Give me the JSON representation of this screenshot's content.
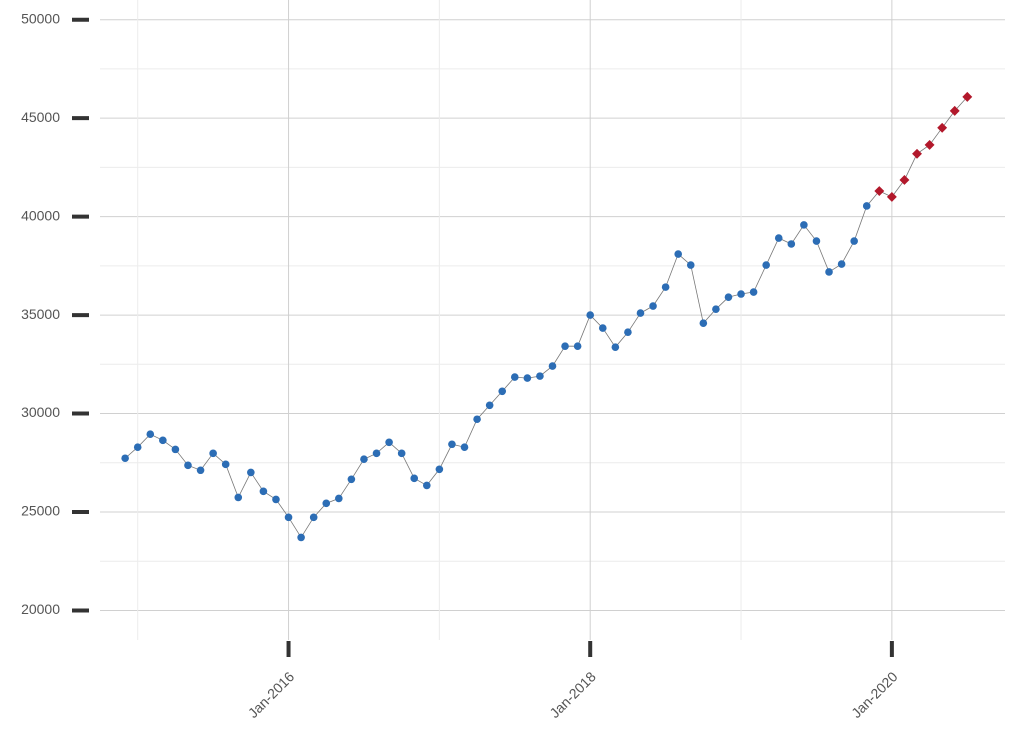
{
  "chart_data": {
    "type": "line",
    "x": [
      "Dec-2014",
      "Jan-2015",
      "Feb-2015",
      "Mar-2015",
      "Apr-2015",
      "May-2015",
      "Jun-2015",
      "Jul-2015",
      "Aug-2015",
      "Sep-2015",
      "Oct-2015",
      "Nov-2015",
      "Dec-2015",
      "Jan-2016",
      "Feb-2016",
      "Mar-2016",
      "Apr-2016",
      "May-2016",
      "Jun-2016",
      "Jul-2016",
      "Aug-2016",
      "Sep-2016",
      "Oct-2016",
      "Nov-2016",
      "Dec-2016",
      "Jan-2017",
      "Feb-2017",
      "Mar-2017",
      "Apr-2017",
      "May-2017",
      "Jun-2017",
      "Jul-2017",
      "Aug-2017",
      "Sep-2017",
      "Oct-2017",
      "Nov-2017",
      "Dec-2017",
      "Jan-2018",
      "Feb-2018",
      "Mar-2018",
      "Apr-2018",
      "May-2018",
      "Jun-2018",
      "Jul-2018",
      "Aug-2018",
      "Sep-2018",
      "Oct-2018",
      "Nov-2018",
      "Dec-2018",
      "Jan-2019",
      "Feb-2019",
      "Mar-2019",
      "Apr-2019",
      "May-2019",
      "Jun-2019",
      "Jul-2019",
      "Aug-2019",
      "Sep-2019",
      "Oct-2019",
      "Nov-2019",
      "Dec-2019",
      "Jan-2020",
      "Feb-2020",
      "Mar-2020",
      "Apr-2020",
      "May-2020",
      "Jun-2020",
      "Jul-2020"
    ],
    "series": [
      {
        "color": "#2c6db5",
        "values": [
          27730,
          28290,
          28950,
          28640,
          28180,
          27370,
          27120,
          27980,
          27420,
          25740,
          27010,
          26050,
          25640,
          24730,
          23710,
          24730,
          25440,
          25690,
          26660,
          27680,
          27980,
          28540,
          27980,
          26710,
          26350,
          27170,
          28440,
          28290,
          29710,
          30420,
          31130,
          31850,
          31800,
          31900,
          32410,
          33420,
          33420,
          35000,
          34340,
          33370,
          34130,
          35100,
          35460,
          36420,
          38100,
          37540,
          34590,
          35300,
          35910,
          36070,
          36170,
          37540,
          38910,
          38610,
          39580,
          38760,
          37190,
          37590,
          38760,
          40540,
          null,
          null,
          null,
          null,
          null,
          null,
          null,
          null
        ]
      },
      {
        "color": "#b2182b",
        "values": [
          null,
          null,
          null,
          null,
          null,
          null,
          null,
          null,
          null,
          null,
          null,
          null,
          null,
          null,
          null,
          null,
          null,
          null,
          null,
          null,
          null,
          null,
          null,
          null,
          null,
          null,
          null,
          null,
          null,
          null,
          null,
          null,
          null,
          null,
          null,
          null,
          null,
          null,
          null,
          null,
          null,
          null,
          null,
          null,
          null,
          null,
          null,
          null,
          null,
          null,
          null,
          null,
          null,
          null,
          null,
          null,
          null,
          null,
          null,
          null,
          41300,
          41000,
          41860,
          43190,
          43640,
          44510,
          45370,
          46080
        ]
      }
    ],
    "line_color": "#777777",
    "xlim": [
      "Oct-2014",
      "Oct-2020"
    ],
    "xticks": [
      "Jan-2016",
      "Jan-2018",
      "Jan-2020"
    ],
    "ylim": [
      18500,
      51000
    ],
    "yticks": [
      20000,
      25000,
      30000,
      35000,
      40000,
      45000,
      50000
    ],
    "grid": true,
    "minor_grid": true
  }
}
